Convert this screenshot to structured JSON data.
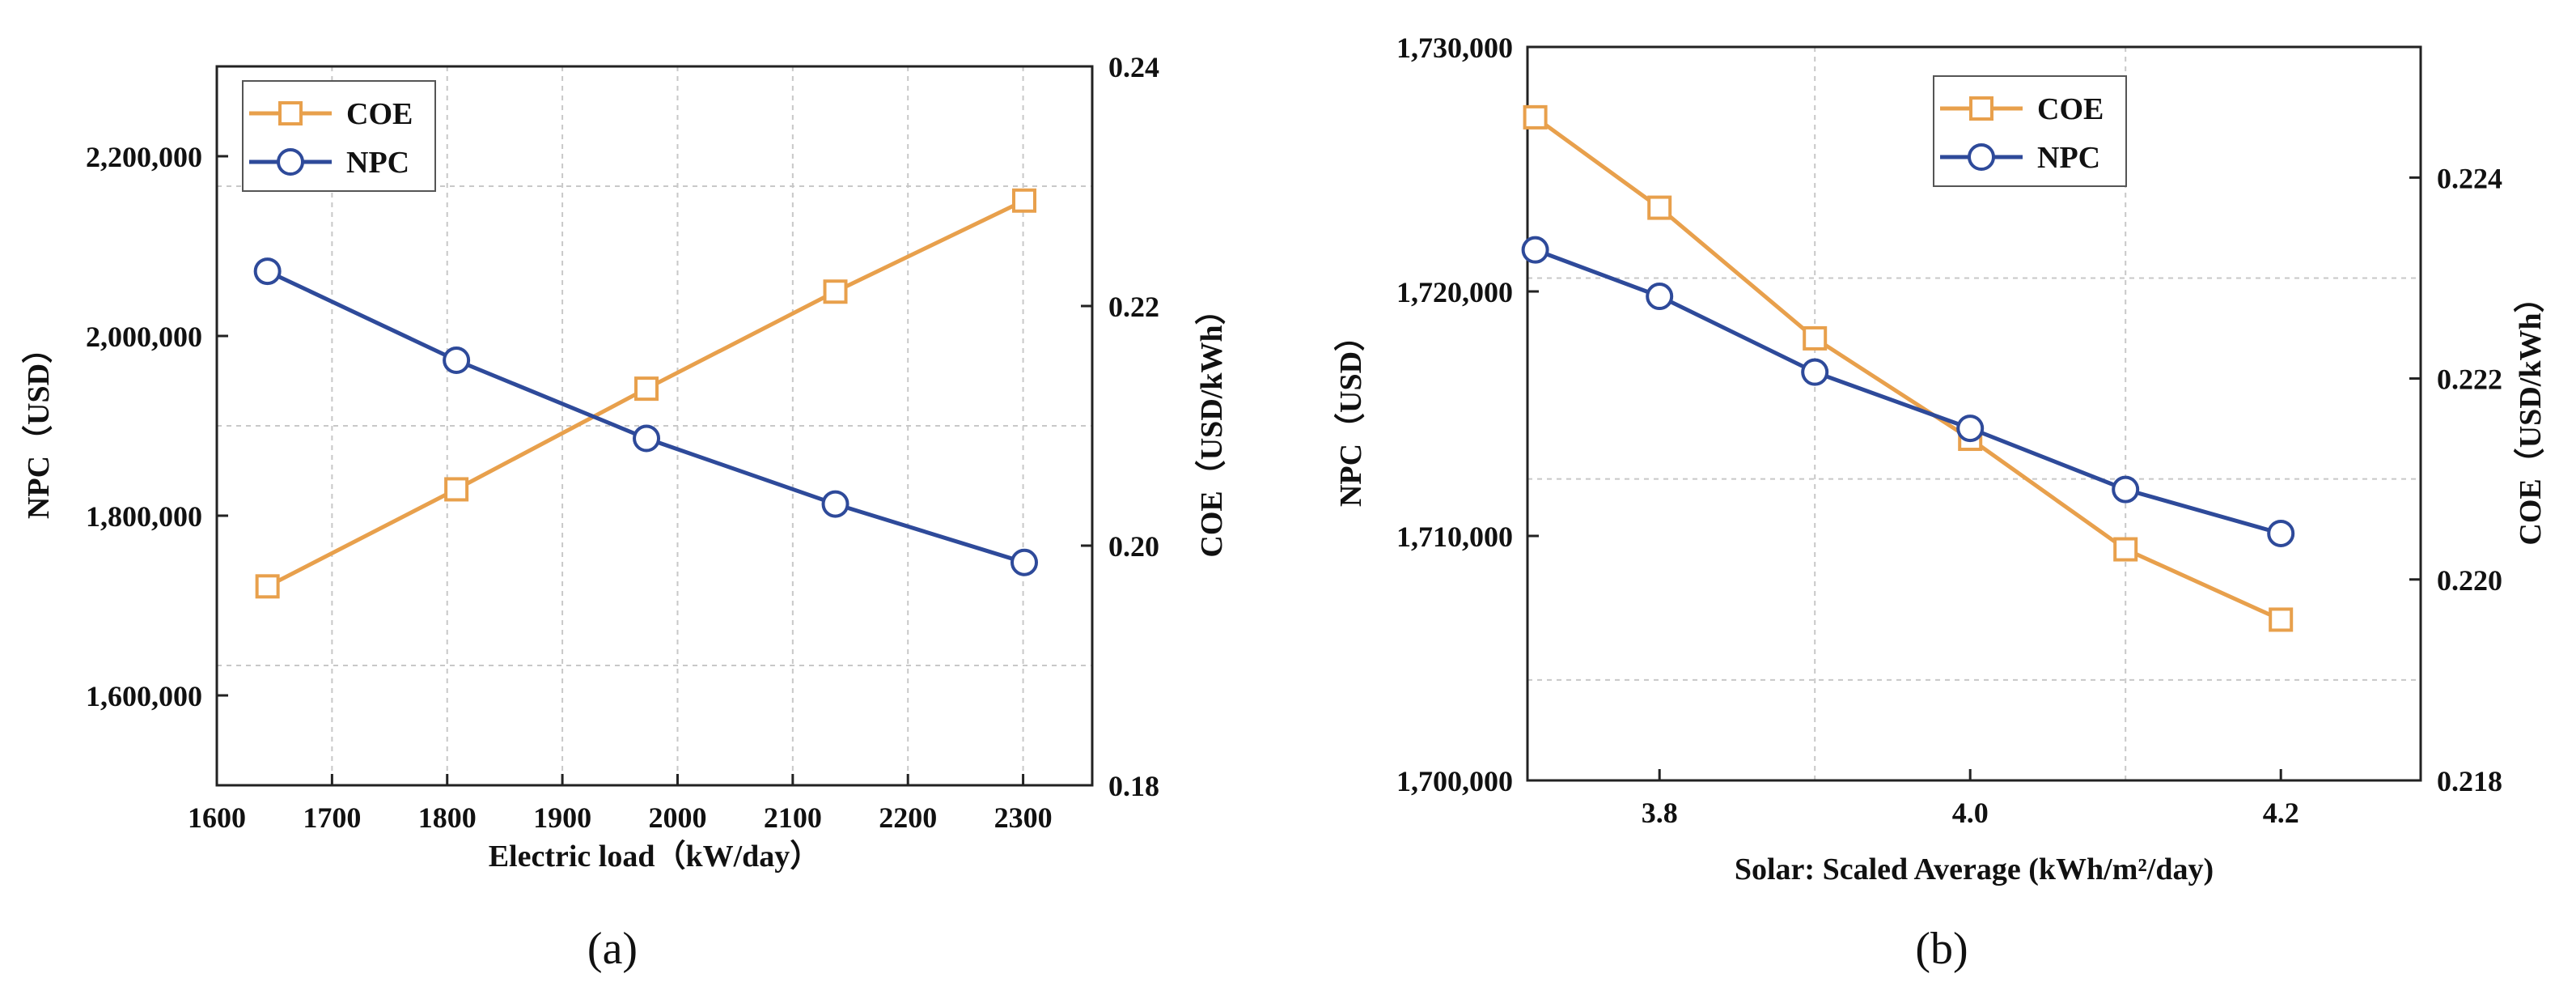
{
  "colors": {
    "coe": "#E8A04C",
    "npc": "#2E4A9A",
    "grid": "#c8c8c8",
    "axis": "#222222"
  },
  "chart_data": [
    {
      "panel_label": "(a)",
      "type": "line",
      "xlabel": "Electric load（kW/day）",
      "ylabel_left": "NPC（USD）",
      "ylabel_right": "COE（USD/kWh）",
      "xlim": [
        1600,
        2360
      ],
      "xticks": [
        1600,
        1700,
        1800,
        1900,
        2000,
        2100,
        2200,
        2300
      ],
      "ylim_left": [
        1500000,
        2300000
      ],
      "yticks_left": [
        1600000,
        1800000,
        2000000,
        2200000
      ],
      "ylim_right": [
        0.18,
        0.24
      ],
      "yticks_right": [
        0.18,
        0.2,
        0.22,
        0.24
      ],
      "legend": [
        "COE",
        "NPC"
      ],
      "series": [
        {
          "name": "COE",
          "axis": "right",
          "marker": "square",
          "x": [
            1644,
            1808,
            1973,
            2137,
            2301
          ],
          "values": [
            0.1966,
            0.2047,
            0.2131,
            0.2212,
            0.2288
          ]
        },
        {
          "name": "NPC",
          "axis": "left",
          "marker": "circle",
          "x": [
            1644,
            1808,
            1973,
            2137,
            2301
          ],
          "values": [
            2072000,
            1973000,
            1886000,
            1813000,
            1748000
          ]
        }
      ]
    },
    {
      "panel_label": "(b)",
      "type": "line",
      "xlabel": "Solar: Scaled Average (kWh/m²/day)",
      "ylabel_left": "NPC（USD）",
      "ylabel_right": "COE（USD/kWh）",
      "xlim": [
        3.715,
        4.29
      ],
      "xticks": [
        3.8,
        4.0,
        4.2
      ],
      "ylim_left": [
        1700000,
        1730000
      ],
      "yticks_left": [
        1700000,
        1710000,
        1720000,
        1730000
      ],
      "ylim_right": [
        0.218,
        0.2253
      ],
      "yticks_right": [
        0.218,
        0.22,
        0.222,
        0.224
      ],
      "legend": [
        "COE",
        "NPC"
      ],
      "series": [
        {
          "name": "COE",
          "axis": "right",
          "marker": "square",
          "x": [
            3.72,
            3.8,
            3.9,
            4.0,
            4.1,
            4.2
          ],
          "values": [
            0.2246,
            0.2237,
            0.2224,
            0.2214,
            0.2203,
            0.2196
          ]
        },
        {
          "name": "NPC",
          "axis": "left",
          "marker": "circle",
          "x": [
            3.72,
            3.8,
            3.9,
            4.0,
            4.1,
            4.2
          ],
          "values": [
            1721700,
            1719800,
            1716700,
            1714400,
            1711900,
            1710100
          ]
        }
      ]
    }
  ]
}
